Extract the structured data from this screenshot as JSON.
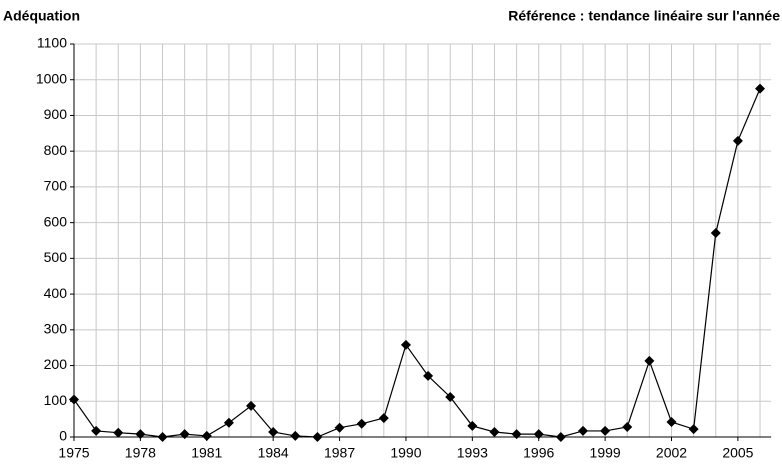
{
  "chart_data": {
    "type": "line",
    "title": "Adéquation",
    "subtitle": "Référence : tendance linéaire sur l'année",
    "x": [
      1975,
      1976,
      1977,
      1978,
      1979,
      1980,
      1981,
      1982,
      1983,
      1984,
      1985,
      1986,
      1987,
      1988,
      1989,
      1990,
      1991,
      1992,
      1993,
      1994,
      1995,
      1996,
      1997,
      1998,
      1999,
      2000,
      2001,
      2002,
      2003,
      2004,
      2005,
      2006
    ],
    "series": [
      {
        "color": "#000000",
        "values": [
          105,
          17,
          12,
          8,
          0,
          8,
          3,
          40,
          87,
          14,
          3,
          0,
          26,
          37,
          53,
          258,
          171,
          112,
          31,
          14,
          8,
          8,
          0,
          17,
          17,
          28,
          213,
          42,
          22,
          571,
          829,
          975
        ]
      }
    ],
    "xlim": [
      1975,
      2006.5
    ],
    "xticks": [
      1975,
      1978,
      1981,
      1984,
      1987,
      1990,
      1993,
      1996,
      1999,
      2002,
      2005
    ],
    "ylim": [
      0,
      1100
    ],
    "yticks": [
      0,
      100,
      200,
      300,
      400,
      500,
      600,
      700,
      800,
      900,
      1000,
      1100
    ],
    "grid": true
  }
}
